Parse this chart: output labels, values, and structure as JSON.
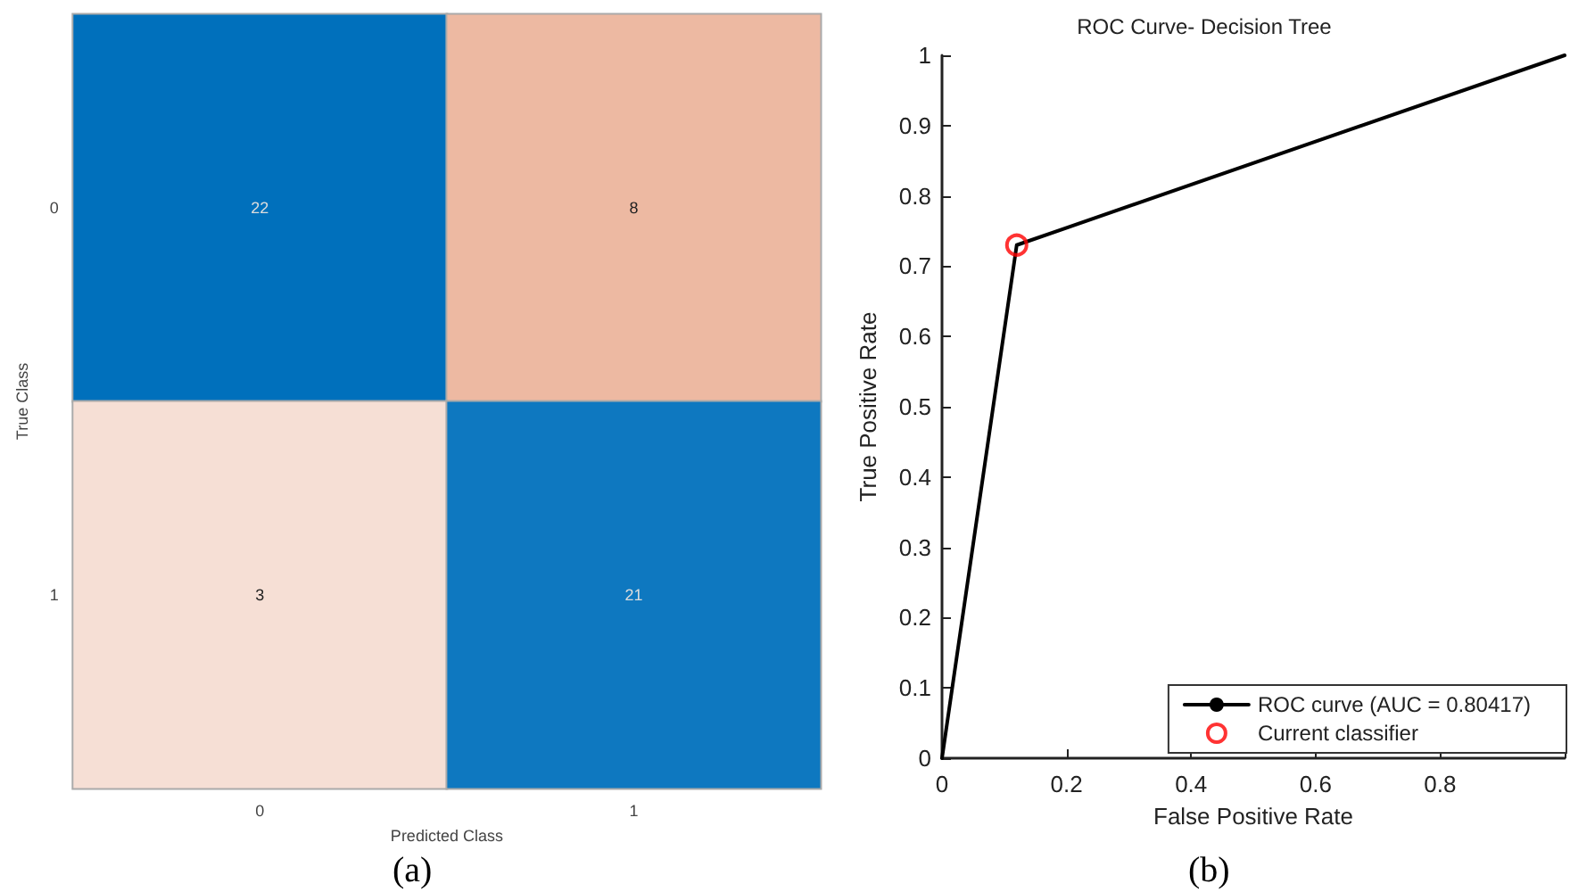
{
  "chart_data": [
    {
      "type": "heatmap",
      "xlabel": "Predicted Class",
      "ylabel": "True Class",
      "categories": [
        "0",
        "1"
      ],
      "y_categories": [
        "0",
        "1"
      ],
      "cells": [
        [
          22,
          8
        ],
        [
          3,
          21
        ]
      ],
      "colors": [
        "#0070bc",
        "#edb9a2",
        "#f6dfd5",
        "#0e78c0"
      ],
      "data_labels": true,
      "annotations": [
        "(a)"
      ]
    },
    {
      "type": "line",
      "title": "ROC Curve- Decision Tree",
      "xlabel": "False Positive Rate",
      "ylabel": "True Positive Rate",
      "xlim": [
        0,
        1
      ],
      "ylim": [
        0,
        1
      ],
      "xticks": [
        0,
        0.2,
        0.4,
        0.6,
        0.8,
        {
          "value": 1,
          "label": null
        }
      ],
      "yticks": [
        0,
        0.1,
        0.2,
        0.3,
        0.4,
        0.5,
        0.6,
        0.7,
        0.8,
        0.9,
        1
      ],
      "series": [
        {
          "name": "ROC curve (AUC = 0.80417)",
          "type": "line",
          "color": "#000000",
          "marker": "none",
          "x": [
            0,
            0.12,
            1
          ],
          "values": [
            0,
            0.73,
            1
          ]
        },
        {
          "name": "Current classifier",
          "type": "scatter",
          "color": "#ff0000",
          "marker": "circle",
          "x": [
            0.12
          ],
          "values": [
            0.73
          ]
        }
      ],
      "legend": "bottom right",
      "grid": false,
      "annotations": [
        "(b)"
      ]
    }
  ]
}
